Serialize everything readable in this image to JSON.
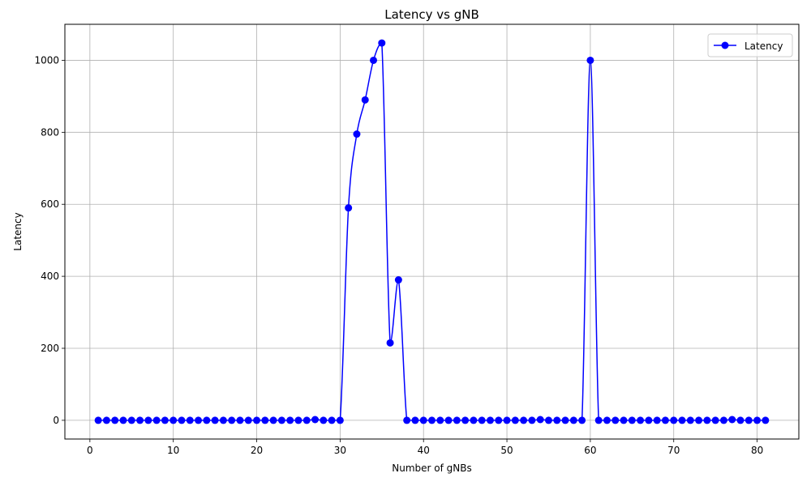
{
  "chart_data": {
    "type": "line",
    "title": "Latency vs gNB",
    "xlabel": "Number of gNBs",
    "ylabel": "Latency",
    "xlim": [
      -3,
      85
    ],
    "ylim": [
      -52,
      1100
    ],
    "xticks": [
      0,
      10,
      20,
      30,
      40,
      50,
      60,
      70,
      80
    ],
    "yticks": [
      0,
      200,
      400,
      600,
      800,
      1000
    ],
    "grid": true,
    "legend_position": "top-right",
    "series": [
      {
        "name": "Latency",
        "color": "#0000ff",
        "marker": "circle",
        "x": [
          1,
          2,
          3,
          4,
          5,
          6,
          7,
          8,
          9,
          10,
          11,
          12,
          13,
          14,
          15,
          16,
          17,
          18,
          19,
          20,
          21,
          22,
          23,
          24,
          25,
          26,
          27,
          28,
          29,
          30,
          31,
          32,
          33,
          34,
          35,
          36,
          37,
          38,
          39,
          40,
          41,
          42,
          43,
          44,
          45,
          46,
          47,
          48,
          49,
          50,
          51,
          52,
          53,
          54,
          55,
          56,
          57,
          58,
          59,
          60,
          61,
          62,
          63,
          64,
          65,
          66,
          67,
          68,
          69,
          70,
          71,
          72,
          73,
          74,
          75,
          76,
          77,
          78,
          79,
          80,
          81
        ],
        "y": [
          0,
          0,
          0,
          0,
          0,
          0,
          0,
          0,
          0,
          0,
          0,
          0,
          0,
          0,
          0,
          0,
          0,
          0,
          0,
          0,
          0,
          0,
          0,
          0,
          0,
          0,
          2,
          0,
          0,
          0,
          590,
          795,
          890,
          1000,
          1048,
          215,
          390,
          0,
          0,
          0,
          0,
          0,
          0,
          0,
          0,
          0,
          0,
          0,
          0,
          0,
          0,
          0,
          0,
          2,
          0,
          0,
          0,
          0,
          0,
          1000,
          0,
          0,
          0,
          0,
          0,
          0,
          0,
          0,
          0,
          0,
          0,
          0,
          0,
          0,
          0,
          0,
          2,
          0,
          0,
          0,
          0
        ]
      }
    ]
  }
}
